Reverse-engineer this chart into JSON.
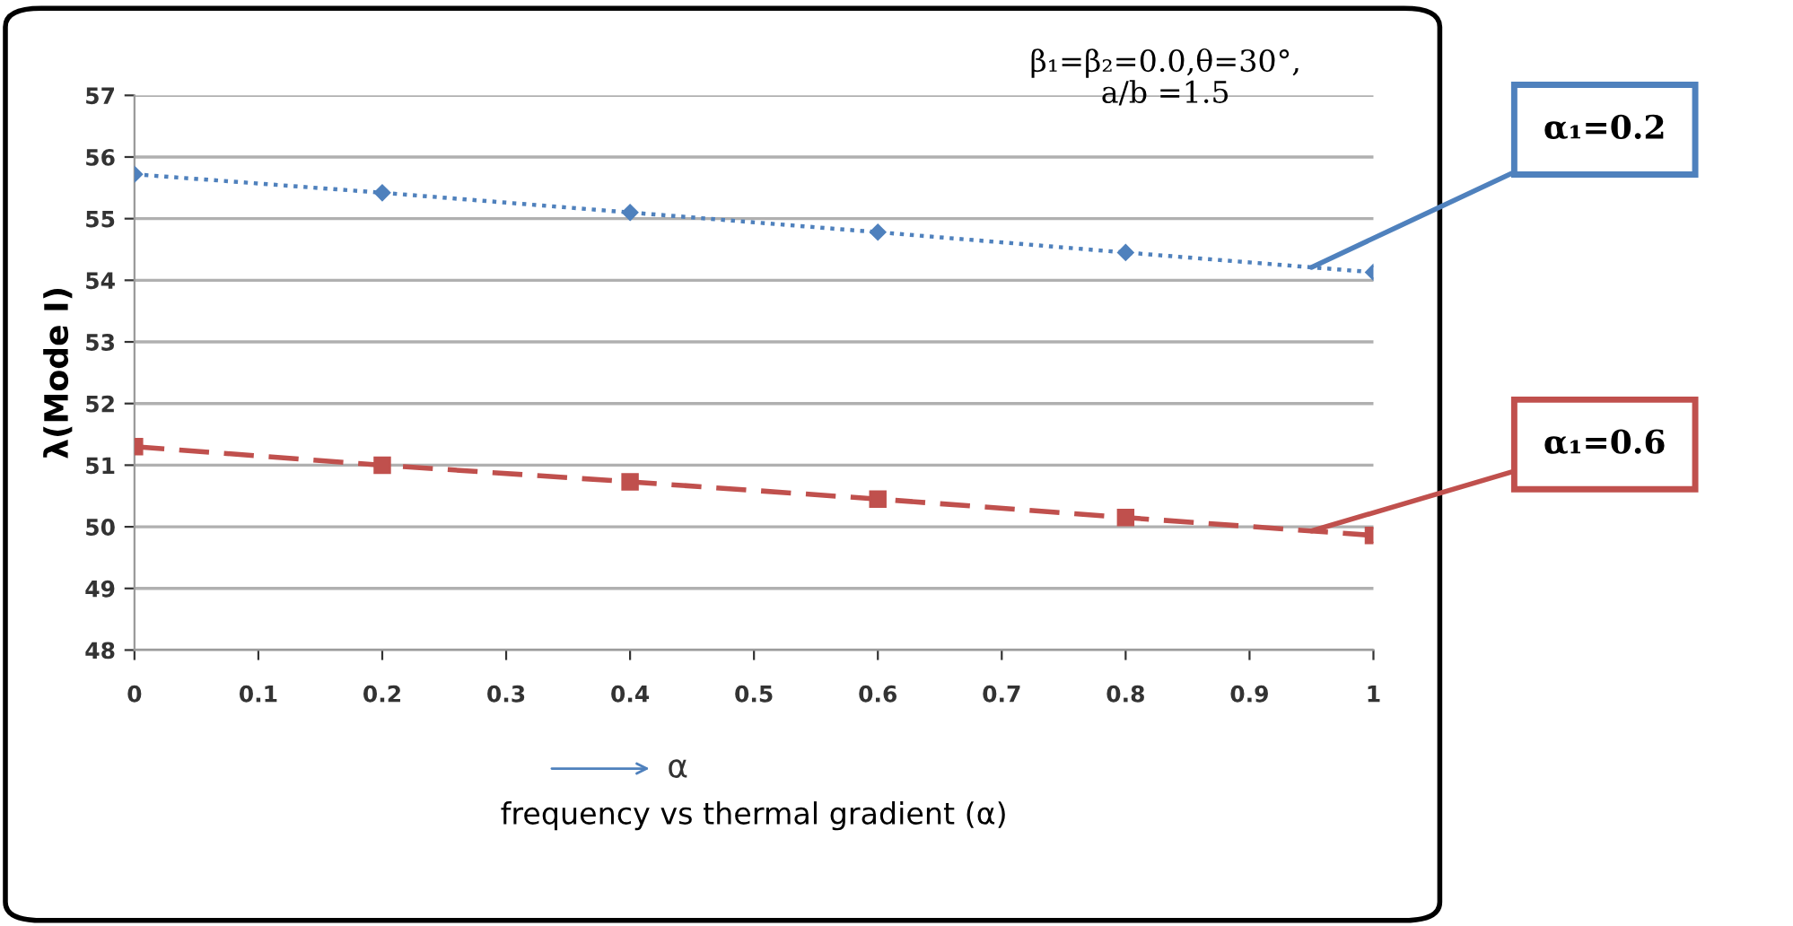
{
  "chart_data": {
    "type": "line",
    "xlabel": "frequency vs thermal gradient (α)",
    "ylabel": "λ(Mode I)",
    "annotations": [
      "β₁=β₂=0.0,θ=30°,\na/b =1.5",
      "α"
    ],
    "x": [
      0,
      0.2,
      0.4,
      0.6,
      0.8,
      1
    ],
    "series": [
      {
        "name": "α₁=0.2",
        "color": "#4f81bd",
        "marker": "diamond",
        "line_style": "dotted",
        "values": [
          55.72,
          55.42,
          55.1,
          54.78,
          54.45,
          54.13
        ]
      },
      {
        "name": "α₁=0.6",
        "color": "#c0504d",
        "marker": "square",
        "line_style": "dashed",
        "values": [
          51.3,
          51.0,
          50.73,
          50.45,
          50.15,
          49.86
        ]
      }
    ],
    "xlim": [
      0,
      1
    ],
    "xticks": [
      0,
      0.1,
      0.2,
      0.3,
      0.4,
      0.5,
      0.6,
      0.7,
      0.8,
      0.9,
      1
    ],
    "ylim": [
      48,
      57
    ],
    "yticks": [
      48,
      49,
      50,
      51,
      52,
      53,
      54,
      55,
      56,
      57
    ],
    "grid": "y"
  }
}
